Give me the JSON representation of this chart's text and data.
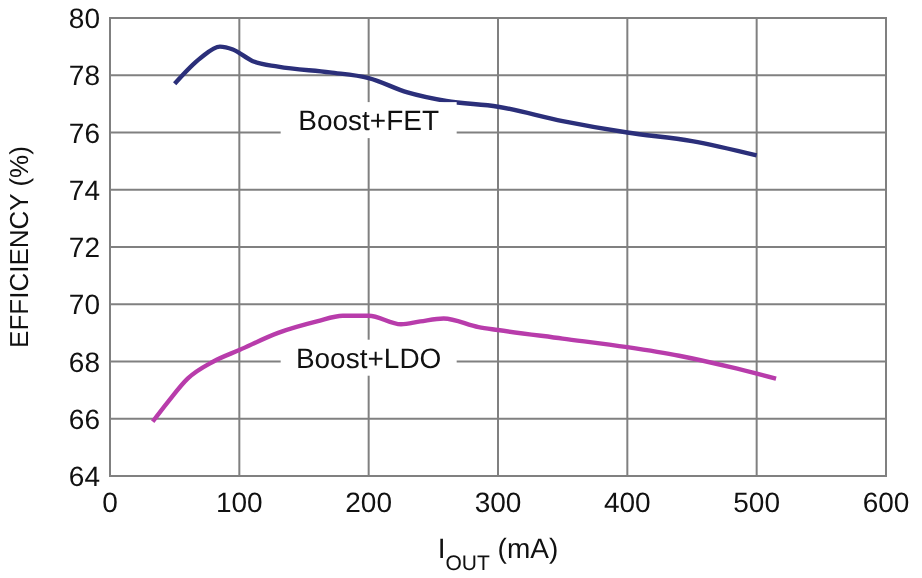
{
  "chart_data": {
    "type": "line",
    "xlabel": "I$_{OUT}$ (mA)",
    "ylabel": "EFFICIENCY (%)",
    "xlim": [
      0,
      600
    ],
    "xticks": [
      0,
      100,
      200,
      300,
      400,
      500,
      600
    ],
    "ylim": [
      64,
      80
    ],
    "yticks": [
      64,
      66,
      68,
      70,
      72,
      74,
      76,
      78,
      80
    ],
    "grid": true,
    "marker": "none",
    "line_style": "solid",
    "series": [
      {
        "name": "Boost+FET",
        "color": "#2b2f7a",
        "x": [
          50,
          70,
          85,
          95,
          110,
          130,
          170,
          200,
          230,
          260,
          300,
          350,
          400,
          450,
          500
        ],
        "values": [
          77.7,
          78.6,
          79.0,
          78.9,
          78.5,
          78.3,
          78.1,
          77.9,
          77.4,
          77.1,
          76.9,
          76.4,
          76.0,
          75.7,
          75.2
        ]
      },
      {
        "name": "Boost+LDO",
        "color": "#b83cab",
        "x": [
          33,
          45,
          60,
          80,
          100,
          130,
          160,
          180,
          200,
          225,
          240,
          258,
          285,
          300,
          350,
          400,
          440,
          480,
          515
        ],
        "values": [
          65.9,
          66.6,
          67.4,
          68.0,
          68.4,
          69.0,
          69.4,
          69.6,
          69.6,
          69.3,
          69.4,
          69.5,
          69.2,
          69.1,
          68.8,
          68.5,
          68.2,
          67.8,
          67.4
        ]
      }
    ]
  }
}
